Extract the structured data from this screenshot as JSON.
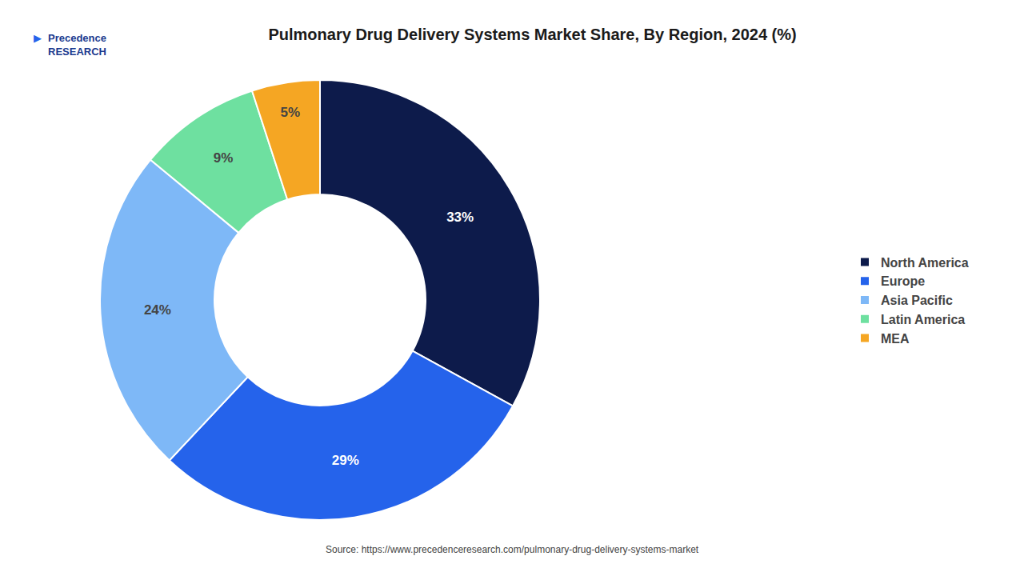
{
  "chart_data": {
    "type": "pie",
    "title": "Pulmonary Drug Delivery Systems Market Share, By Region, 2024 (%)",
    "categories": [
      "North America",
      "Europe",
      "Asia Pacific",
      "Latin America",
      "MEA"
    ],
    "values": [
      33,
      29,
      24,
      9,
      5
    ],
    "value_labels": [
      "33%",
      "29%",
      "24%",
      "9%",
      "5%"
    ],
    "colors": [
      "#0d1b4b",
      "#2563eb",
      "#7eb8f7",
      "#6ee0a0",
      "#f5a623"
    ],
    "data_labels": true,
    "legend": "right",
    "annotations": [
      "▶",
      "Precedence\nRESEARCH",
      "Source: https://www.precedenceresearch.com/pulmonary-drug-delivery-systems-market"
    ]
  }
}
